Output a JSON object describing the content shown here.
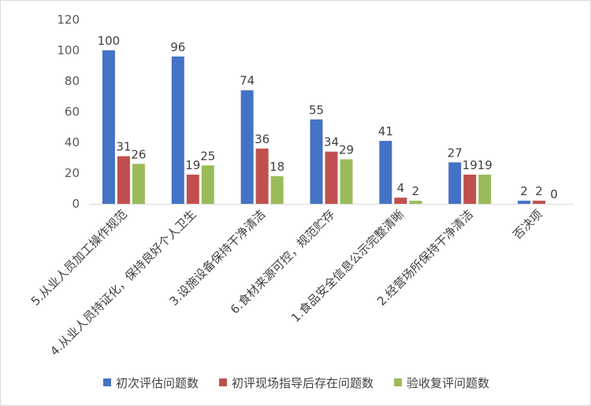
{
  "chart_data": {
    "type": "bar",
    "title": "",
    "xlabel": "",
    "ylabel": "",
    "ylim": [
      0,
      120
    ],
    "yticks": [
      0,
      20,
      40,
      60,
      80,
      100,
      120
    ],
    "grid": false,
    "legend_position": "bottom",
    "categories": [
      "5.从业人员加工操作规范",
      "4.从业人员持证化，保持良好个人卫生",
      "3.设施设备保持干净清洁",
      "6.食材来源可控，规范贮存",
      "1.食品安全信息公示完整清晰",
      "2.经营场所保持干净清洁",
      "否决项"
    ],
    "series": [
      {
        "name": "初次评估问题数",
        "color": "#4472C4",
        "values": [
          100,
          96,
          74,
          55,
          41,
          27,
          2
        ]
      },
      {
        "name": "初评现场指导后存在问题数",
        "color": "#C0504D",
        "values": [
          31,
          19,
          36,
          34,
          4,
          19,
          2
        ]
      },
      {
        "name": "验收复评问题数",
        "color": "#9BBB59",
        "values": [
          26,
          25,
          18,
          29,
          2,
          19,
          0
        ]
      }
    ]
  }
}
